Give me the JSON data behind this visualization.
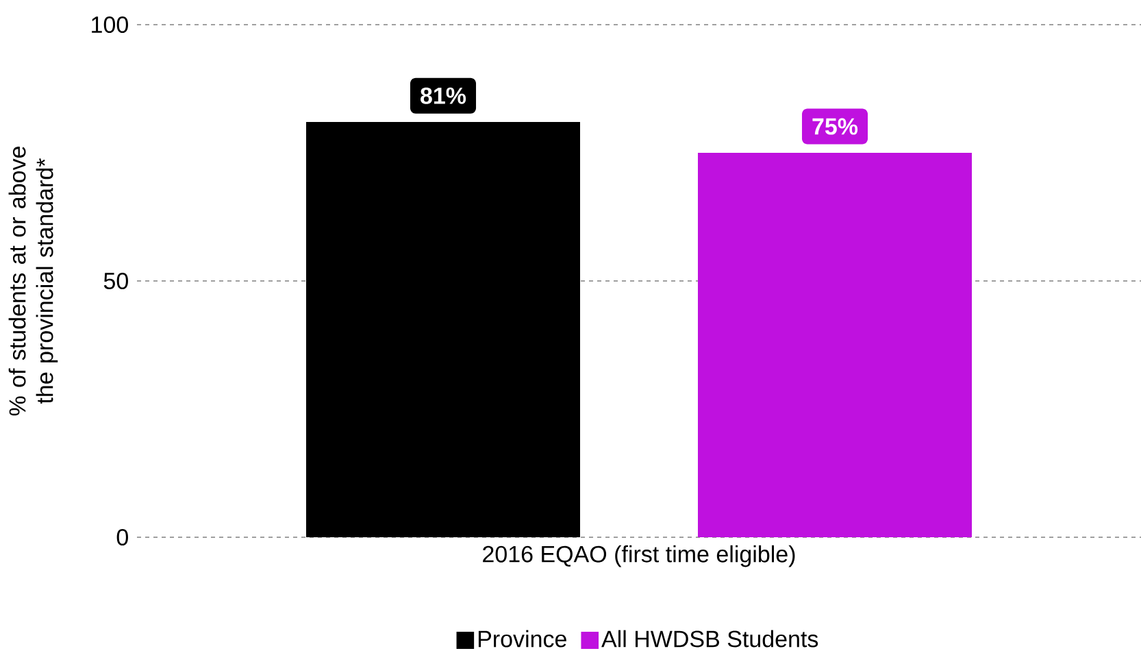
{
  "chart_data": {
    "type": "bar",
    "ylabel": "% of students at or above the provincial standard*",
    "categories": [
      "2016 EQAO (first time eligible)"
    ],
    "series": [
      {
        "name": "Province",
        "color": "#000000",
        "values": [
          81
        ],
        "value_labels": [
          "81%"
        ]
      },
      {
        "name": "All HWDSB Students",
        "color": "#bf11df",
        "values": [
          75
        ],
        "value_labels": [
          "75%"
        ]
      }
    ],
    "ylim": [
      0,
      100
    ],
    "yticks": [
      0,
      50,
      100
    ],
    "grid": "y",
    "legend": "bottom"
  }
}
